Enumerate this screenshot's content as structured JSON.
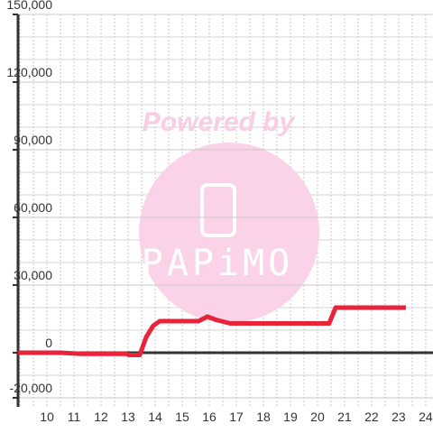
{
  "chart_data": {
    "type": "line",
    "watermark": {
      "text": "Powered by",
      "logo": "PAPiMO"
    },
    "x": [
      8.93,
      10.5,
      11.27,
      12.93,
      13.03,
      13.43,
      13.67,
      13.93,
      14.17,
      15.6,
      15.93,
      16.27,
      16.77,
      20.43,
      20.67,
      23.27
    ],
    "series": [
      {
        "color": "#e8233a",
        "values": [
          0,
          0,
          -500,
          -500,
          -1000,
          -1000,
          7000,
          12000,
          14000,
          14000,
          16000,
          14500,
          13000,
          13000,
          20000,
          20000
        ]
      }
    ],
    "xlim": [
      8.93,
      24.27
    ],
    "xticks": [
      10,
      11,
      12,
      13,
      14,
      15,
      16,
      17,
      18,
      19,
      20,
      21,
      22,
      23,
      24
    ],
    "xminor": [
      9,
      9.5,
      10.5,
      11.5,
      12.5,
      13.5,
      14.5,
      15.5,
      16.5,
      17.5,
      18.5,
      19.5,
      20.5,
      21.5,
      22.5,
      23.5
    ],
    "ylim": [
      -24000,
      150000
    ],
    "yticks": [
      {
        "value": -20000,
        "label": "-20,000"
      },
      0,
      {
        "value": 30000,
        "label": "30,000"
      },
      {
        "value": 60000,
        "label": "60,000"
      },
      {
        "value": 90000,
        "label": "90,000"
      },
      {
        "value": 120000,
        "label": "120,000"
      },
      {
        "value": 150000,
        "label": "150,000"
      }
    ],
    "yminor": [
      -10000,
      10000,
      20000,
      40000,
      50000,
      70000,
      80000,
      100000,
      110000,
      130000,
      140000
    ],
    "grid": true
  }
}
